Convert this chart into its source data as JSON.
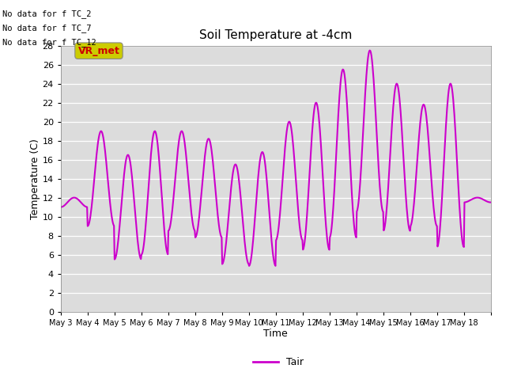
{
  "title": "Soil Temperature at -4cm",
  "xlabel": "Time",
  "ylabel": "Temperature (C)",
  "ylim": [
    0,
    28
  ],
  "yticks": [
    0,
    2,
    4,
    6,
    8,
    10,
    12,
    14,
    16,
    18,
    20,
    22,
    24,
    26,
    28
  ],
  "line_color": "#CC00CC",
  "line_width": 1.5,
  "plot_bg": "#DCDCDC",
  "annotations": [
    "No data for f_TC_2",
    "No data for f_TC_7",
    "No data for f_TC_12"
  ],
  "legend_label": "Tair",
  "legend_color": "#CC00CC",
  "xtick_labels": [
    "May 3",
    "May 4",
    "May 5",
    "May 6",
    "May 7",
    "May 8",
    "May 9",
    "May 10",
    "May 11",
    "May 12",
    "May 13",
    "May 14",
    "May 15",
    "May 16",
    "May 17",
    "May 18"
  ],
  "vr_met_box_color": "#CCCC00",
  "vr_met_text_color": "#CC0000",
  "day_mins": [
    11.0,
    9.0,
    5.5,
    6.0,
    8.5,
    7.8,
    5.0,
    4.8,
    7.5,
    6.5,
    7.8,
    10.5,
    8.5,
    9.0,
    6.8,
    11.5
  ],
  "day_maxs": [
    12.0,
    19.0,
    16.5,
    19.0,
    19.0,
    18.2,
    15.5,
    16.8,
    20.0,
    22.0,
    25.5,
    27.5,
    24.0,
    21.8,
    24.0,
    12.0
  ]
}
